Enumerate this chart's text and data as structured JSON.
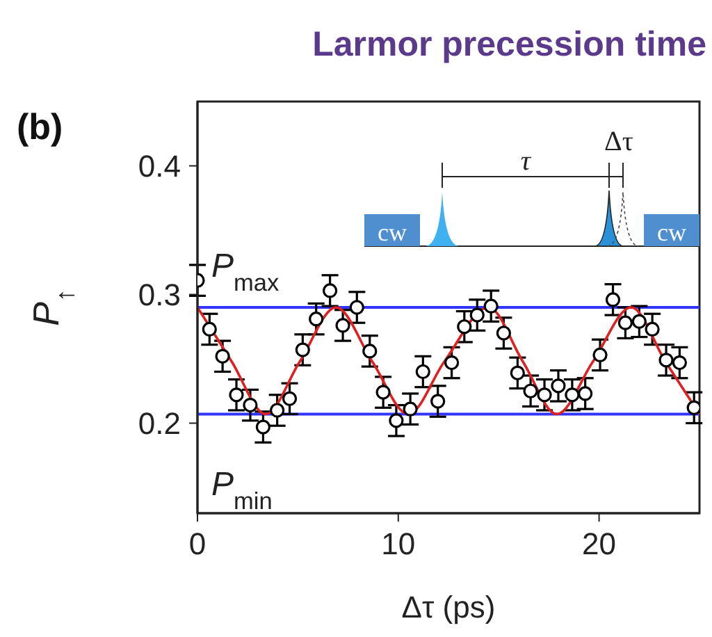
{
  "chart_data": {
    "type": "scatter",
    "title": "Larmor precession time",
    "xlabel": "Δτ (ps)",
    "ylabel": "P$_{↑}$",
    "annotations": [
      "(b)",
      "cw",
      "τ",
      "Δτ",
      "cw"
    ],
    "xlim": [
      0,
      25
    ],
    "xticks": [
      0,
      10,
      20
    ],
    "ylim": [
      0.13,
      0.45
    ],
    "yticks": [
      0.2,
      0.3,
      0.4
    ],
    "series": [
      {
        "color": "#000000",
        "marker": "circle",
        "x": [
          0,
          0.6,
          1.25,
          1.94,
          2.63,
          3.27,
          3.97,
          4.59,
          5.24,
          5.91,
          6.6,
          7.24,
          7.94,
          8.58,
          9.25,
          9.9,
          10.6,
          11.23,
          11.97,
          12.66,
          13.29,
          13.93,
          14.62,
          15.25,
          15.94,
          16.59,
          17.28,
          17.97,
          18.66,
          19.31,
          20.05,
          20.69,
          21.31,
          22.0,
          22.65,
          23.34,
          24.01,
          24.73
        ],
        "values": [
          0.311,
          0.273,
          0.252,
          0.222,
          0.214,
          0.197,
          0.21,
          0.219,
          0.257,
          0.281,
          0.303,
          0.276,
          0.29,
          0.256,
          0.224,
          0.202,
          0.211,
          0.24,
          0.217,
          0.247,
          0.275,
          0.284,
          0.291,
          0.27,
          0.239,
          0.225,
          0.222,
          0.229,
          0.222,
          0.223,
          0.253,
          0.296,
          0.278,
          0.279,
          0.273,
          0.249,
          0.247,
          0.212
        ],
        "errors": [
          0.012,
          0.012,
          0.012,
          0.012,
          0.012,
          0.012,
          0.012,
          0.012,
          0.012,
          0.012,
          0.012,
          0.012,
          0.012,
          0.012,
          0.012,
          0.012,
          0.012,
          0.012,
          0.012,
          0.012,
          0.012,
          0.012,
          0.012,
          0.012,
          0.012,
          0.012,
          0.012,
          0.012,
          0.012,
          0.012,
          0.012,
          0.012,
          0.012,
          0.012,
          0.012,
          0.012,
          0.012,
          0.012
        ]
      },
      {
        "type": "line",
        "color": "#e02020",
        "marker": "none",
        "x": [
          0,
          1.7,
          3.4,
          5.1,
          6.9,
          8.7,
          10.5,
          12.3,
          14.5,
          16.2,
          17.9,
          19.7,
          21.6,
          23.3,
          25
        ],
        "values": [
          0.29,
          0.248,
          0.207,
          0.248,
          0.29,
          0.248,
          0.207,
          0.248,
          0.29,
          0.248,
          0.207,
          0.248,
          0.29,
          0.248,
          0.207
        ]
      }
    ],
    "ref_lines": [
      {
        "axis": "y",
        "value": 0.29,
        "label": "P$_{max}$",
        "color": "#3333ff"
      },
      {
        "axis": "y",
        "value": 0.207,
        "label": "P$_{min}$",
        "color": "#3333ff"
      }
    ]
  }
}
